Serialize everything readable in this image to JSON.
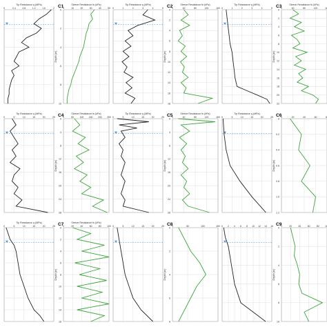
{
  "panel_labels": [
    "C1",
    "C2",
    "C3",
    "C4",
    "C5",
    "C6",
    "C7",
    "C8",
    "C9"
  ],
  "colors": {
    "tip": "#222222",
    "sleeve": "#3aa63a",
    "grid": "#d6d6d6",
    "water": "#4a90d9",
    "frame": "#999999"
  },
  "chart_data": [
    {
      "type": "line",
      "panel": "C1",
      "left_title": "Tip Resistance q (MPa)",
      "right_title": "Sleeve Resistance fs (kPa)",
      "ylabel": "Depth (m)",
      "ylim": [
        0,
        10
      ],
      "yticks": [
        "0",
        "2",
        "4",
        "6",
        "8",
        "10"
      ],
      "left_xticks": [
        "0",
        "0.4",
        "0.8",
        "1.2",
        "1.6",
        "2"
      ],
      "right_xticks": [
        "0",
        "10",
        "20",
        "30",
        "40",
        "50"
      ],
      "tip": {
        "y": [
          0,
          0.5,
          1,
          1.5,
          2,
          2.5,
          3,
          3.5,
          4,
          4.5,
          5,
          5.5,
          6,
          6.5,
          7,
          7.5,
          8,
          8.5,
          9,
          9.5,
          10
        ],
        "x": [
          1.9,
          1.7,
          1.4,
          1.2,
          1.5,
          1.3,
          0.9,
          0.7,
          1.0,
          0.6,
          0.5,
          0.4,
          0.6,
          0.3,
          0.4,
          0.3,
          0.25,
          0.2,
          0.2,
          0.15,
          0.15
        ],
        "xlim": [
          0,
          2
        ]
      },
      "sleeve": {
        "y": [
          0,
          0.5,
          1,
          1.5,
          2,
          2.5,
          3,
          3.5,
          4,
          4.5,
          5,
          5.5,
          6,
          6.5,
          7,
          7.5,
          8,
          8.5,
          9,
          9.5,
          10
        ],
        "x": [
          34,
          30,
          32,
          28,
          27,
          25,
          24,
          23,
          22,
          20,
          18,
          17,
          15,
          13,
          11,
          9,
          8,
          6,
          5,
          4,
          4
        ],
        "xlim": [
          0,
          50
        ]
      }
    },
    {
      "type": "line",
      "panel": "C2",
      "left_title": "Tip Resistance q (MPa)",
      "right_title": "Sleeve Resistance fs (kPa)",
      "ylabel": "Depth (m)",
      "ylim": [
        0,
        18
      ],
      "yticks": [
        "0",
        "2",
        "4",
        "6",
        "8",
        "10",
        "12",
        "14",
        "16",
        "18"
      ],
      "left_xticks": [
        "0",
        "1",
        "2",
        "3",
        "4",
        "5"
      ],
      "right_xticks": [
        "0",
        "40",
        "80",
        "120",
        "160"
      ],
      "tip": {
        "y": [
          0,
          1,
          2,
          3,
          4,
          5,
          6,
          7,
          8,
          9,
          10,
          11,
          12,
          13,
          14,
          15,
          16,
          17,
          18
        ],
        "x": [
          3.5,
          3.0,
          4.2,
          2.5,
          1.5,
          2.0,
          1.2,
          1.8,
          1.0,
          1.6,
          0.9,
          1.4,
          1.1,
          2.0,
          1.3,
          1.9,
          1.2,
          2.2,
          1.8
        ],
        "xlim": [
          0,
          5
        ]
      },
      "sleeve": {
        "y": [
          0,
          1,
          2,
          3,
          4,
          5,
          6,
          7,
          8,
          9,
          10,
          11,
          12,
          13,
          14,
          15,
          16,
          17,
          18
        ],
        "x": [
          40,
          55,
          30,
          60,
          25,
          35,
          20,
          45,
          30,
          50,
          28,
          42,
          35,
          55,
          30,
          48,
          40,
          140,
          90
        ],
        "xlim": [
          0,
          160
        ]
      }
    },
    {
      "type": "line",
      "panel": "C3",
      "left_title": "Tip Resistance q (MPa)",
      "right_title": "Sleeve Resistance fs (kPa)",
      "ylabel": "Depth (m)",
      "ylim": [
        0,
        22
      ],
      "yticks": [
        "0",
        "2",
        "4",
        "6",
        "8",
        "10",
        "12",
        "14",
        "16",
        "18",
        "20",
        "22"
      ],
      "left_xticks": [
        "0",
        "1",
        "2",
        "3",
        "4",
        "5"
      ],
      "right_xticks": [
        "0",
        "40",
        "80",
        "120",
        "160"
      ],
      "tip": {
        "y": [
          0,
          2,
          4,
          6,
          8,
          10,
          12,
          14,
          16,
          18,
          19,
          20,
          21,
          22
        ],
        "x": [
          0.4,
          0.5,
          0.6,
          0.7,
          0.8,
          1.0,
          1.1,
          1.2,
          1.3,
          1.5,
          2.5,
          3.5,
          4.5,
          4.8
        ],
        "xlim": [
          0,
          5
        ]
      },
      "sleeve": {
        "y": [
          0,
          1,
          2,
          3,
          4,
          5,
          6,
          7,
          8,
          9,
          10,
          11,
          12,
          13,
          14,
          15,
          16,
          17,
          18,
          19,
          20,
          21,
          22
        ],
        "x": [
          40,
          60,
          30,
          70,
          45,
          80,
          35,
          55,
          65,
          40,
          90,
          50,
          70,
          45,
          85,
          60,
          75,
          55,
          95,
          70,
          110,
          130,
          120
        ],
        "xlim": [
          0,
          160
        ]
      }
    },
    {
      "type": "line",
      "panel": "C4",
      "left_title": "Tip Resistance q (MPa)",
      "right_title": "Sleeve Resistance fs (kPa)",
      "ylabel": "Depth (m)",
      "ylim": [
        0,
        30
      ],
      "yticks": [
        "0",
        "4",
        "8",
        "12",
        "16",
        "20",
        "24",
        "28"
      ],
      "left_xticks": [
        "0",
        "5",
        "10",
        "15",
        "20",
        "25"
      ],
      "right_xticks": [
        "0",
        "50",
        "100",
        "150",
        "200",
        "250"
      ],
      "tip": {
        "y": [
          0,
          2,
          4,
          6,
          8,
          10,
          12,
          14,
          16,
          18,
          20,
          22,
          24,
          26,
          28,
          30
        ],
        "x": [
          4,
          6,
          3,
          5,
          7,
          4,
          6,
          3,
          8,
          5,
          4,
          7,
          5,
          9,
          6,
          22
        ],
        "xlim": [
          0,
          25
        ]
      },
      "sleeve": {
        "y": [
          0,
          2,
          4,
          6,
          8,
          10,
          12,
          14,
          16,
          18,
          20,
          22,
          24,
          26,
          28,
          30
        ],
        "x": [
          60,
          90,
          50,
          120,
          80,
          140,
          70,
          110,
          60,
          130,
          90,
          150,
          100,
          220,
          160,
          240
        ],
        "xlim": [
          0,
          250
        ]
      }
    },
    {
      "type": "line",
      "panel": "C5",
      "left_title": "Tip Resistance q (MPa)",
      "right_title": "Sleeve Resistance fs (kPa)",
      "ylabel": "Depth (m)",
      "ylim": [
        0,
        30
      ],
      "yticks": [
        "0",
        "4",
        "8",
        "12",
        "16",
        "20",
        "24",
        "28"
      ],
      "left_xticks": [
        "0",
        "5",
        "10",
        "15",
        "20",
        "25"
      ],
      "right_xticks": [
        "0",
        "40",
        "80",
        "120",
        "160"
      ],
      "tip": {
        "y": [
          0,
          1,
          2,
          3,
          4,
          6,
          8,
          10,
          12,
          14,
          16,
          18,
          20,
          22,
          24,
          26,
          28,
          30
        ],
        "x": [
          2,
          18,
          3,
          12,
          4,
          6,
          3,
          5,
          4,
          6,
          5,
          4,
          6,
          5,
          4,
          6,
          5,
          18
        ],
        "xlim": [
          0,
          25
        ]
      },
      "sleeve": {
        "y": [
          0,
          1,
          2,
          4,
          6,
          8,
          10,
          12,
          14,
          16,
          18,
          20,
          22,
          24,
          26,
          28,
          30
        ],
        "x": [
          20,
          150,
          30,
          60,
          25,
          50,
          30,
          45,
          35,
          55,
          30,
          50,
          40,
          60,
          35,
          55,
          130
        ],
        "xlim": [
          0,
          160
        ]
      }
    },
    {
      "type": "line",
      "panel": "C6",
      "left_title": "Tip Resistance q (MPa)",
      "right_title": "",
      "ylabel": "Depth (m)",
      "ylim": [
        0,
        1.2
      ],
      "yticks": [
        "0",
        "0.2",
        "0.4",
        "0.6",
        "0.8",
        "1.0",
        "1.2"
      ],
      "left_xticks": [
        "0",
        "5",
        "10",
        "15",
        "20",
        "25"
      ],
      "right_xticks": [
        "0",
        "20",
        "40",
        "60",
        "80"
      ],
      "tip": {
        "y": [
          0,
          0.2,
          0.4,
          0.6,
          0.8,
          1.0,
          1.2
        ],
        "x": [
          0.5,
          1,
          2,
          4,
          9,
          15,
          22
        ],
        "xlim": [
          0,
          25
        ]
      },
      "sleeve": {
        "y": [
          0,
          0.2,
          0.4,
          0.6,
          0.8,
          1.0,
          1.2
        ],
        "x": [
          15,
          35,
          30,
          50,
          35,
          60,
          55
        ],
        "xlim": [
          0,
          80
        ]
      }
    },
    {
      "type": "line",
      "panel": "C7",
      "left_title": "Tip Resistance q (MPa)",
      "right_title": "Sleeve Resistance fs (kPa)",
      "ylabel": "Depth (m)",
      "ylim": [
        0,
        16
      ],
      "yticks": [
        "0",
        "2",
        "4",
        "6",
        "8",
        "10",
        "12",
        "14",
        "16"
      ],
      "left_xticks": [
        "0",
        "5",
        "10",
        "15",
        "20",
        "25"
      ],
      "right_xticks": [
        "0",
        "20",
        "40",
        "60",
        "80",
        "100"
      ],
      "tip": {
        "y": [
          0,
          1,
          2,
          3,
          4,
          6,
          8,
          10,
          12,
          14,
          15,
          16
        ],
        "x": [
          1,
          2,
          3,
          5,
          6,
          7,
          8,
          10,
          12,
          15,
          18,
          20
        ],
        "xlim": [
          0,
          25
        ]
      },
      "sleeve": {
        "y": [
          0,
          1,
          2,
          3,
          4,
          5,
          6,
          7,
          8,
          9,
          10,
          11,
          12,
          13,
          14,
          15,
          16
        ],
        "x": [
          20,
          60,
          30,
          90,
          40,
          100,
          25,
          80,
          35,
          95,
          30,
          85,
          40,
          100,
          30,
          90,
          60
        ],
        "xlim": [
          0,
          100
        ]
      }
    },
    {
      "type": "line",
      "panel": "C8",
      "left_title": "",
      "right_title": "",
      "ylabel": "Depth (m)",
      "ylim": [
        0,
        8
      ],
      "yticks": [
        "0",
        "2",
        "4",
        "6",
        "8"
      ],
      "left_xticks": [
        "0",
        "5",
        "10",
        "15",
        "20",
        "25"
      ],
      "right_xticks": [
        "0",
        "50",
        "100",
        "150"
      ],
      "tip": {
        "y": [
          0,
          1,
          2,
          3,
          4,
          5,
          6,
          7,
          8
        ],
        "x": [
          2,
          3,
          4,
          5,
          6,
          8,
          10,
          14,
          20
        ],
        "xlim": [
          0,
          25
        ]
      },
      "sleeve": {
        "y": [
          0,
          1,
          2,
          3,
          4,
          5,
          6,
          7,
          8
        ],
        "x": [
          20,
          40,
          60,
          90,
          110,
          80,
          60,
          40,
          20
        ],
        "xlim": [
          0,
          150
        ]
      }
    },
    {
      "type": "line",
      "panel": "C9",
      "left_title": "",
      "right_title": "",
      "ylabel": "Depth (m)",
      "ylim": [
        0,
        10
      ],
      "yticks": [
        "0",
        "2",
        "4",
        "6",
        "8",
        "10"
      ],
      "left_xticks": [
        "0",
        "2",
        "4",
        "6",
        "8",
        "10",
        "12",
        "14",
        "16"
      ],
      "right_xticks": [
        "0",
        "20",
        "40",
        "60",
        "80",
        "100"
      ],
      "tip": {
        "y": [
          0,
          1,
          2,
          3,
          4,
          5,
          6,
          7,
          8,
          9,
          10
        ],
        "x": [
          0.5,
          1,
          2,
          2.5,
          3,
          3.5,
          4,
          5,
          6,
          10,
          14
        ],
        "xlim": [
          0,
          16
        ]
      },
      "sleeve": {
        "y": [
          0,
          1,
          2,
          3,
          4,
          5,
          6,
          7,
          8,
          9,
          10
        ],
        "x": [
          20,
          25,
          30,
          28,
          35,
          40,
          38,
          45,
          90,
          50,
          60
        ],
        "xlim": [
          0,
          100
        ]
      }
    }
  ]
}
